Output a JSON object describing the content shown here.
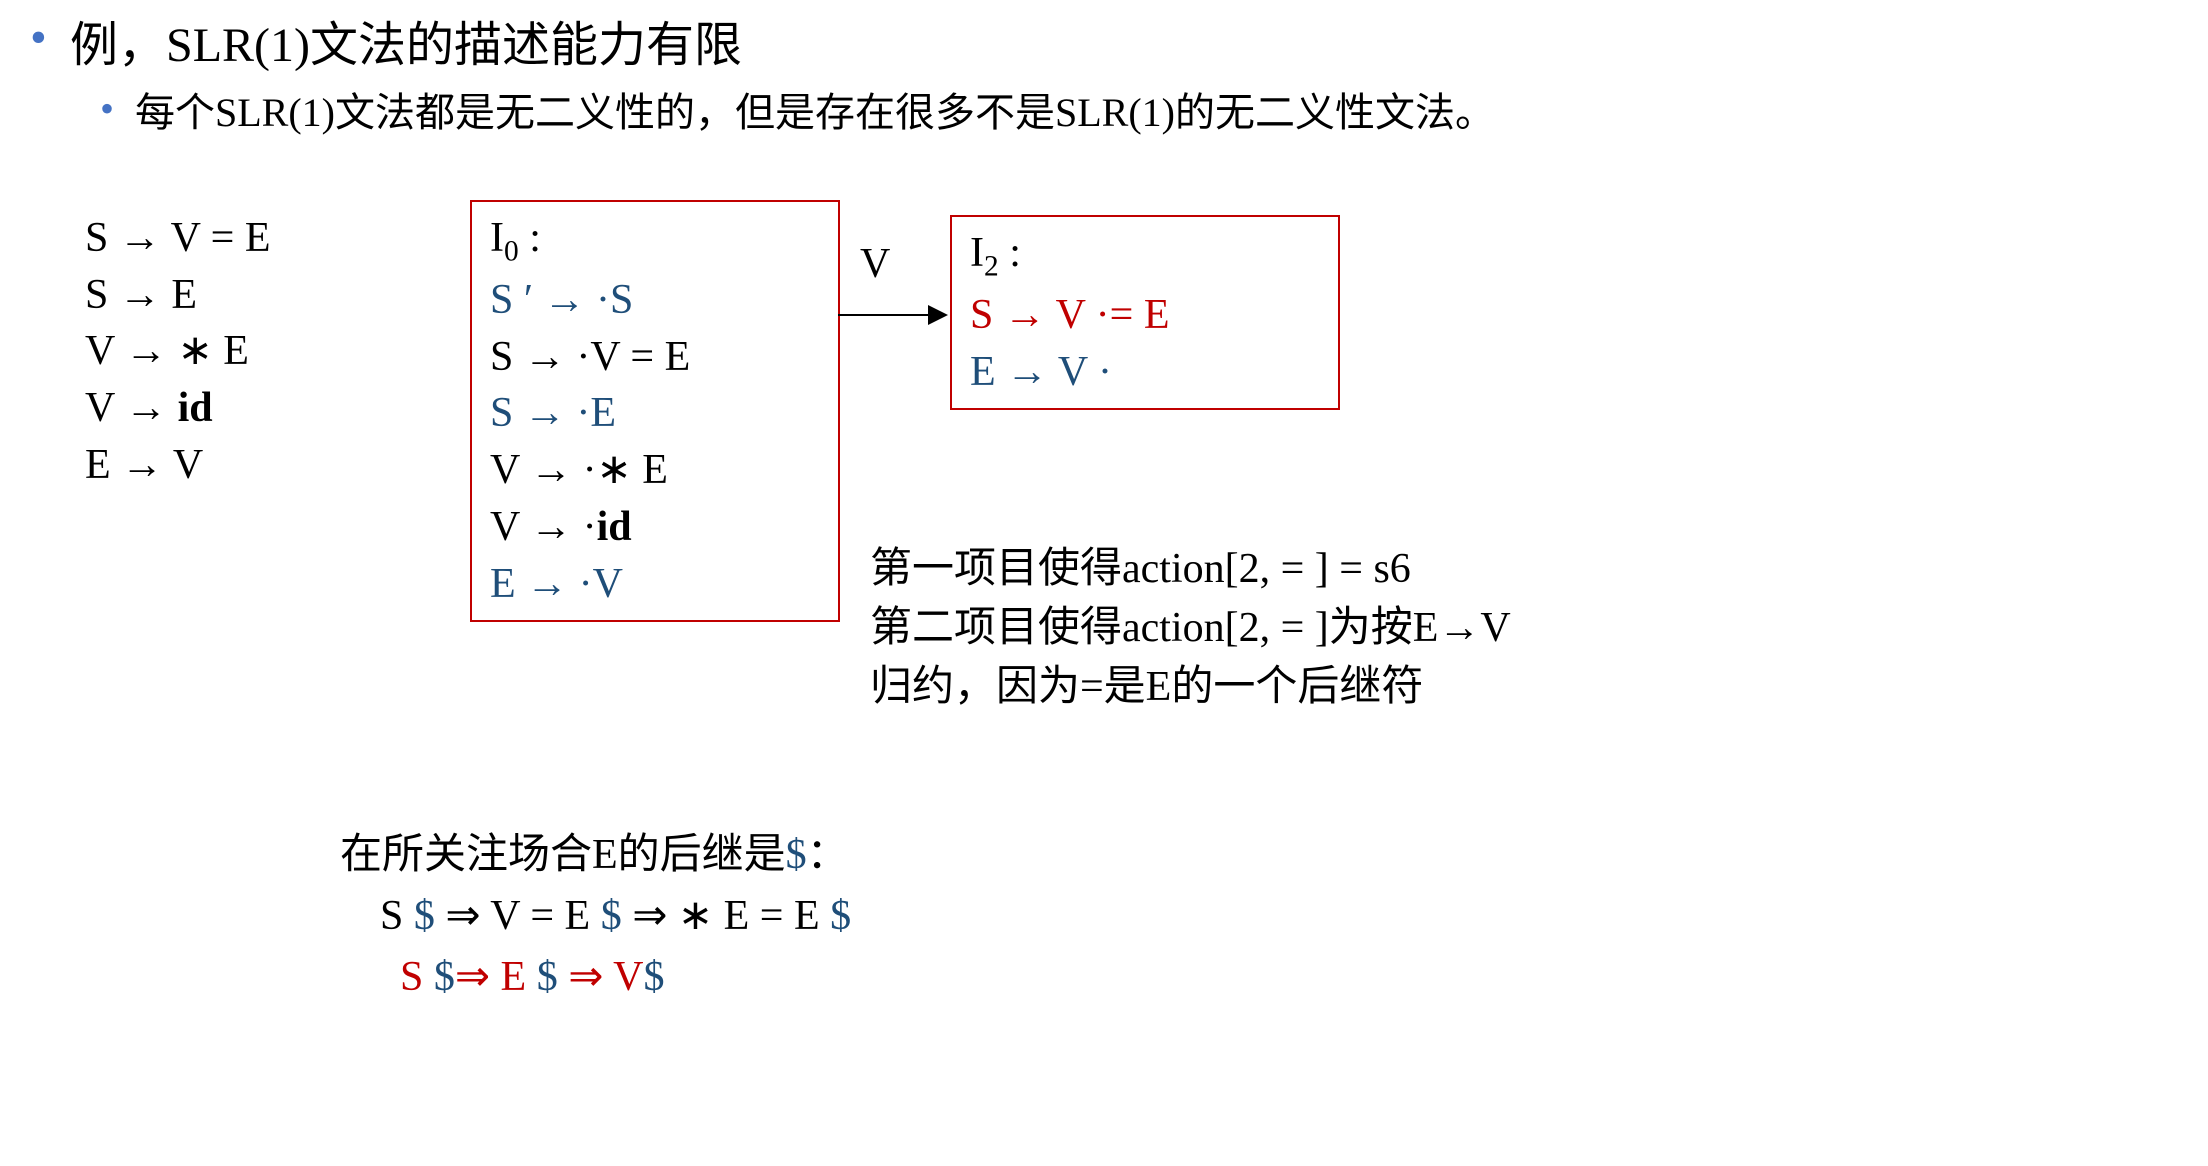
{
  "colors": {
    "bullet": "#4472c4",
    "blue": "#1f4e79",
    "red": "#c00000",
    "black": "#000000",
    "border": "#c00000",
    "background": "#ffffff"
  },
  "fonts": {
    "title_main_size": 48,
    "title_sub_size": 40,
    "body_size": 42
  },
  "title_main": "例，SLR(1)文法的描述能力有限",
  "title_sub": "每个SLR(1)文法都是无二义性的，但是存在很多不是SLR(1)的无二义性文法。",
  "grammar": {
    "rules": [
      {
        "lhs": "S",
        "rhs": "V = E"
      },
      {
        "lhs": "S",
        "rhs": "E"
      },
      {
        "lhs": "V",
        "rhs": "∗ E"
      },
      {
        "lhs": "V",
        "rhs": "id",
        "bold_rhs": true
      },
      {
        "lhs": "E",
        "rhs": "V"
      }
    ]
  },
  "states": {
    "I0": {
      "label": "I",
      "sub": "0",
      "items": [
        {
          "text_html": "S ′ → ·S",
          "color": "blue"
        },
        {
          "text_html": "S → ·V = E",
          "color": "black"
        },
        {
          "text_html": "S → ·E",
          "color": "blue"
        },
        {
          "text_html": "V → ·∗ E",
          "color": "black"
        },
        {
          "text_html": "V → ·<b>id</b>",
          "color": "black"
        },
        {
          "text_html": "E → ·V",
          "color": "blue"
        }
      ]
    },
    "I2": {
      "label": "I",
      "sub": "2",
      "items": [
        {
          "text_html": "S → V ·= E",
          "color": "red"
        },
        {
          "text_html": "E → V ·",
          "color": "blue"
        }
      ]
    }
  },
  "transition_label": "V",
  "explanation": {
    "line1": "第一项目使得action[2, = ] = s6",
    "line2": "第二项目使得action[2, = ]为按E→V",
    "line3": "归约，因为=是E的一个后继符"
  },
  "derivation": {
    "intro_prefix": "在所关注场合E的后继是",
    "intro_dollar": "$",
    "intro_suffix": "：",
    "line1": {
      "seg1": "S ",
      "d1": "$",
      "seg2": " ⇒  V = E ",
      "d2": "$",
      "seg3": " ⇒ ∗ E = E ",
      "d3": "$"
    },
    "line2": {
      "seg1": "S ",
      "d1": "$",
      "seg2": "⇒  E ",
      "d2": "$",
      "seg3": " ⇒ V",
      "d3": "$"
    }
  }
}
